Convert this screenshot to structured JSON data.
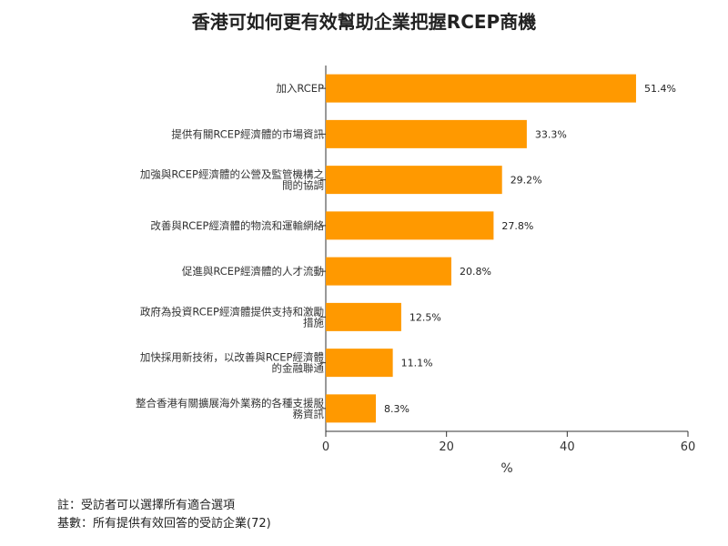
{
  "chart_data": {
    "type": "bar",
    "orientation": "horizontal",
    "title": "香港可如何更有效幫助企業把握RCEP商機",
    "xlabel": "%",
    "xlim": [
      0,
      60
    ],
    "xticks": [
      0,
      20,
      40,
      60
    ],
    "categories": [
      [
        "加入RCEP"
      ],
      [
        "提供有關RCEP經濟體的市場資訊"
      ],
      [
        "加強與RCEP經濟體的公營及監管機構之",
        "間的協調"
      ],
      [
        "改善與RCEP經濟體的物流和運輸網絡"
      ],
      [
        "促進與RCEP經濟體的人才流動"
      ],
      [
        "政府為投資RCEP經濟體提供支持和激勵",
        "措施"
      ],
      [
        "加快採用新技術，以改善與RCEP經濟體",
        "的金融聯通"
      ],
      [
        "整合香港有關擴展海外業務的各種支援服",
        "務資訊"
      ]
    ],
    "values": [
      51.4,
      33.3,
      29.2,
      27.8,
      20.8,
      12.5,
      11.1,
      8.3
    ],
    "value_labels": [
      "51.4%",
      "33.3%",
      "29.2%",
      "27.8%",
      "20.8%",
      "12.5%",
      "11.1%",
      "8.3%"
    ],
    "bar_color": "#FF9900",
    "grid": false,
    "legend": "none"
  },
  "notes": {
    "note": "註：受訪者可以選擇所有適合選項",
    "base": "基數：所有提供有效回答的受訪企業(72)"
  }
}
